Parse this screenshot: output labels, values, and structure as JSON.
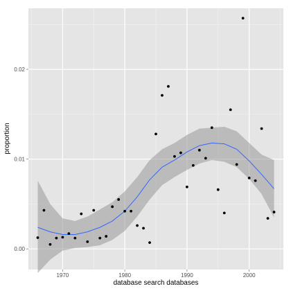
{
  "chart_data": {
    "type": "scatter",
    "xlabel": "database search databases",
    "ylabel": "proportion",
    "xlim": [
      1964.5,
      2005.5
    ],
    "ylim": [
      -0.0023,
      0.0268
    ],
    "x_ticks": [
      1970,
      1980,
      1990,
      2000
    ],
    "x_tick_labels": [
      "1970",
      "1980",
      "1990",
      "2000"
    ],
    "y_ticks": [
      0.0,
      0.01,
      0.02
    ],
    "y_tick_labels": [
      "0.00",
      "0.01",
      "0.02"
    ],
    "grid": true,
    "colors": {
      "panel_background": "#e5e5e5",
      "grid_major": "#ffffff",
      "grid_minor": "#f2f2f2",
      "points": "#000000",
      "smooth_line": "#3366ff",
      "confidence_band": "#999999"
    },
    "points": [
      {
        "x": 1966,
        "y": 0.00125
      },
      {
        "x": 1967,
        "y": 0.0043
      },
      {
        "x": 1968,
        "y": 0.0005
      },
      {
        "x": 1969,
        "y": 0.0012
      },
      {
        "x": 1970,
        "y": 0.0013
      },
      {
        "x": 1971,
        "y": 0.0017
      },
      {
        "x": 1972,
        "y": 0.0012
      },
      {
        "x": 1973,
        "y": 0.0039
      },
      {
        "x": 1974,
        "y": 0.0008
      },
      {
        "x": 1975,
        "y": 0.0043
      },
      {
        "x": 1976,
        "y": 0.0012
      },
      {
        "x": 1977,
        "y": 0.0014
      },
      {
        "x": 1978,
        "y": 0.0047
      },
      {
        "x": 1979,
        "y": 0.0055
      },
      {
        "x": 1980,
        "y": 0.0042
      },
      {
        "x": 1981,
        "y": 0.0042
      },
      {
        "x": 1982,
        "y": 0.0026
      },
      {
        "x": 1983,
        "y": 0.0023
      },
      {
        "x": 1984,
        "y": 0.0007
      },
      {
        "x": 1985,
        "y": 0.0128
      },
      {
        "x": 1986,
        "y": 0.0171
      },
      {
        "x": 1987,
        "y": 0.0181
      },
      {
        "x": 1988,
        "y": 0.0103
      },
      {
        "x": 1989,
        "y": 0.0107
      },
      {
        "x": 1990,
        "y": 0.0069
      },
      {
        "x": 1991,
        "y": 0.0093
      },
      {
        "x": 1992,
        "y": 0.011
      },
      {
        "x": 1993,
        "y": 0.0101
      },
      {
        "x": 1994,
        "y": 0.0135
      },
      {
        "x": 1995,
        "y": 0.0066
      },
      {
        "x": 1996,
        "y": 0.004
      },
      {
        "x": 1997,
        "y": 0.0155
      },
      {
        "x": 1998,
        "y": 0.0094
      },
      {
        "x": 1999,
        "y": 0.0257
      },
      {
        "x": 2000,
        "y": 0.0079
      },
      {
        "x": 2001,
        "y": 0.0076
      },
      {
        "x": 2002,
        "y": 0.0134
      },
      {
        "x": 2003,
        "y": 0.0034
      },
      {
        "x": 2004,
        "y": 0.0041
      }
    ],
    "smooth": {
      "method": "loess",
      "x": [
        1966,
        1968,
        1970,
        1972,
        1974,
        1976,
        1978,
        1980,
        1982,
        1984,
        1986,
        1988,
        1990,
        1992,
        1994,
        1996,
        1998,
        2000,
        2002,
        2004
      ],
      "y": [
        0.0024,
        0.0019,
        0.0016,
        0.0016,
        0.0019,
        0.0024,
        0.0031,
        0.0042,
        0.0058,
        0.0077,
        0.0091,
        0.0099,
        0.0108,
        0.0115,
        0.0118,
        0.0117,
        0.0111,
        0.0098,
        0.0083,
        0.0067
      ],
      "lower": [
        -0.0027,
        -0.0012,
        -0.0002,
        0.0001,
        0.0002,
        0.0004,
        0.001,
        0.002,
        0.0036,
        0.0055,
        0.0071,
        0.008,
        0.0088,
        0.0095,
        0.0099,
        0.0097,
        0.0091,
        0.0078,
        0.0061,
        0.0035
      ],
      "upper": [
        0.0076,
        0.005,
        0.0034,
        0.0031,
        0.0036,
        0.0044,
        0.0052,
        0.0064,
        0.008,
        0.0099,
        0.0111,
        0.0118,
        0.0127,
        0.0134,
        0.0135,
        0.0136,
        0.0131,
        0.0118,
        0.0105,
        0.0099
      ]
    }
  }
}
